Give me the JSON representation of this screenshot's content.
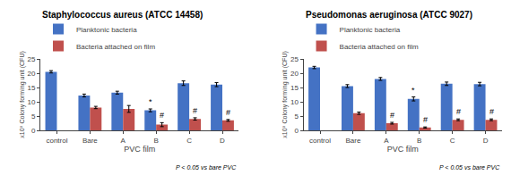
{
  "chart_data": [
    {
      "type": "bar",
      "title": "Staphylococcus aureus (ATCC 14458)",
      "categories": [
        "control",
        "Bare",
        "A",
        "B",
        "C",
        "D"
      ],
      "xlabel": "PVC film",
      "ylabel": "x10⁹ Colony forming unit (CFU)",
      "ylim": [
        0,
        25
      ],
      "yticks": [
        0,
        5,
        10,
        15,
        20,
        25
      ],
      "grid": false,
      "legend": "top",
      "footnote": "P < 0.05 vs bare PVC",
      "series": [
        {
          "name": "Planktonic bacteria",
          "color": "#4472C4",
          "values": [
            20.5,
            12.2,
            13.2,
            7.0,
            16.5,
            16.0
          ],
          "errors": [
            0.4,
            0.5,
            0.5,
            0.5,
            0.8,
            0.7
          ],
          "significance": [
            null,
            null,
            null,
            "*",
            null,
            null
          ]
        },
        {
          "name": "Bacteria attached on film",
          "color": "#C0504D",
          "values": [
            null,
            8.0,
            7.5,
            2.0,
            4.0,
            3.5
          ],
          "errors": [
            null,
            0.4,
            1.2,
            0.7,
            0.4,
            0.3
          ],
          "significance": [
            null,
            null,
            null,
            "#",
            "#",
            "#"
          ]
        }
      ]
    },
    {
      "type": "bar",
      "title": "Pseudomonas aeruginosa (ATCC 9027)",
      "categories": [
        "control",
        "Bare",
        "A",
        "B",
        "C",
        "D"
      ],
      "xlabel": "PVC film",
      "ylabel": "x10⁹ Colony forming unit (CFU)",
      "ylim": [
        0,
        25
      ],
      "yticks": [
        0,
        5,
        10,
        15,
        20,
        25
      ],
      "grid": false,
      "legend": "top",
      "footnote": "P < 0.05 vs bare PVC",
      "series": [
        {
          "name": "Planktonic bacteria",
          "color": "#4472C4",
          "values": [
            22.0,
            15.5,
            18.0,
            11.0,
            16.3,
            16.2
          ],
          "errors": [
            0.4,
            0.5,
            0.5,
            0.7,
            0.6,
            0.6
          ],
          "significance": [
            null,
            null,
            null,
            "*",
            null,
            null
          ]
        },
        {
          "name": "Bacteria attached on film",
          "color": "#C0504D",
          "values": [
            null,
            6.0,
            2.5,
            1.0,
            3.7,
            3.7
          ],
          "errors": [
            null,
            0.4,
            0.3,
            0.2,
            0.3,
            0.3
          ],
          "significance": [
            null,
            null,
            "#",
            "#",
            "#",
            "#"
          ]
        }
      ]
    }
  ]
}
